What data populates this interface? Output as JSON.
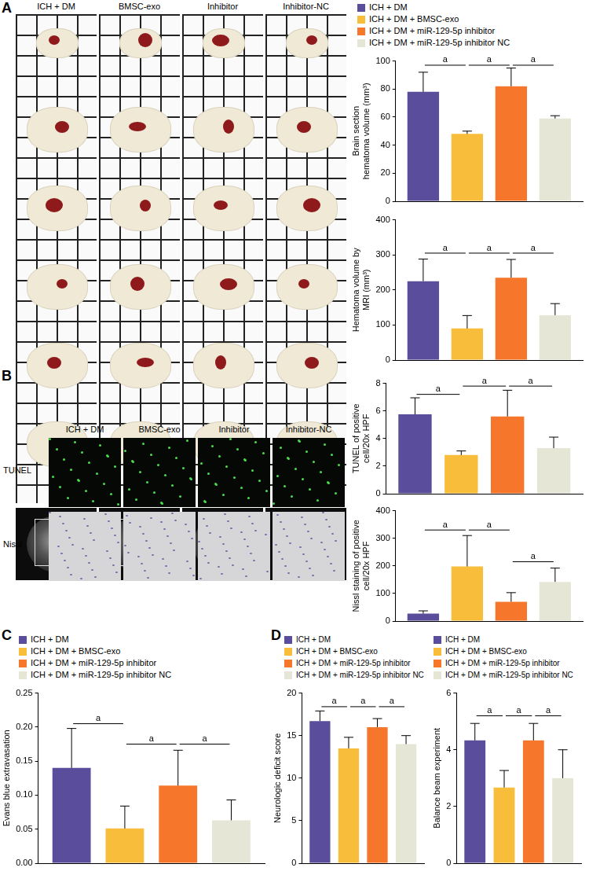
{
  "panel_labels": [
    "A",
    "B",
    "C",
    "D"
  ],
  "images": {
    "A": {
      "columns": [
        "ICH + DM",
        "BMSC-exo",
        "Inhibitor",
        "Inhibitor-NC"
      ]
    },
    "B": {
      "columns": [
        "ICH + DM",
        "BMSC-exo",
        "Inhibitor",
        "Inhibitor-NC"
      ],
      "rows": [
        "TUNEL",
        "Nissl"
      ]
    }
  },
  "chart_data": [
    {
      "type": "bar",
      "legend": "top",
      "y_label": [
        "Brain section",
        "hematoma volume (mm³)"
      ],
      "categories": [
        null
      ],
      "ylim": [
        0,
        100
      ],
      "yticks": [
        0,
        20,
        40,
        60,
        80,
        100
      ],
      "grid": false,
      "tick_labels": "y",
      "series": [
        {
          "name": "ICH + DM",
          "color": "#5a4e9c",
          "values": [
            78
          ],
          "error": [
            14
          ]
        },
        {
          "name": "ICH + DM + BMSC-exo",
          "color": "#f8bd3a",
          "values": [
            48
          ],
          "error": [
            2
          ]
        },
        {
          "name": "ICH + DM + miR-129-5p inhibitor",
          "color": "#f6772b",
          "values": [
            82
          ],
          "error": [
            13
          ]
        },
        {
          "name": "ICH + DM + miR-129-5p inhibitor NC",
          "color": "#e6e6d6",
          "values": [
            59
          ],
          "error": [
            2
          ]
        }
      ],
      "significance": [
        {
          "from": 0,
          "to": 1,
          "y": 97,
          "label": "a"
        },
        {
          "from": 1,
          "to": 2,
          "y": 97,
          "label": "a"
        },
        {
          "from": 2,
          "to": 3,
          "y": 97,
          "label": "a"
        }
      ]
    },
    {
      "type": "bar",
      "y_label": [
        "Hematoma volume by",
        "MRI (mm³)"
      ],
      "categories": [
        null
      ],
      "ylim": [
        0,
        400
      ],
      "yticks": [
        0,
        100,
        200,
        300,
        400
      ],
      "grid": false,
      "tick_labels": "y",
      "series": [
        {
          "name": "ICH + DM",
          "color": "#5a4e9c",
          "values": [
            225
          ],
          "error": [
            63
          ]
        },
        {
          "name": "ICH + DM + BMSC-exo",
          "color": "#f8bd3a",
          "values": [
            90
          ],
          "error": [
            37
          ]
        },
        {
          "name": "ICH + DM + miR-129-5p inhibitor",
          "color": "#f6772b",
          "values": [
            235
          ],
          "error": [
            52
          ]
        },
        {
          "name": "ICH + DM + miR-129-5p inhibitor NC",
          "color": "#e6e6d6",
          "values": [
            128
          ],
          "error": [
            33
          ]
        }
      ],
      "significance": [
        {
          "from": 0,
          "to": 1,
          "y": 305,
          "label": "a"
        },
        {
          "from": 1,
          "to": 2,
          "y": 305,
          "label": "a"
        },
        {
          "from": 2,
          "to": 3,
          "y": 305,
          "label": "a"
        }
      ]
    },
    {
      "type": "bar",
      "y_label": [
        "TUNEL of positive",
        "cell/20x HPF"
      ],
      "categories": [
        null
      ],
      "ylim": [
        0,
        8
      ],
      "yticks": [
        0,
        2,
        4,
        6,
        8
      ],
      "grid": false,
      "tick_labels": "y",
      "series": [
        {
          "name": "ICH + DM",
          "color": "#5a4e9c",
          "values": [
            5.75
          ],
          "error": [
            1.2
          ]
        },
        {
          "name": "ICH + DM + BMSC-exo",
          "color": "#f8bd3a",
          "values": [
            2.8
          ],
          "error": [
            0.3
          ]
        },
        {
          "name": "ICH + DM + miR-129-5p inhibitor",
          "color": "#f6772b",
          "values": [
            5.6
          ],
          "error": [
            1.9
          ]
        },
        {
          "name": "ICH + DM + miR-129-5p inhibitor NC",
          "color": "#e6e6d6",
          "values": [
            3.3
          ],
          "error": [
            0.8
          ]
        }
      ],
      "significance": [
        {
          "from": 0,
          "to": 1,
          "y": 7.2,
          "label": "a"
        },
        {
          "from": 1,
          "to": 2,
          "y": 7.8,
          "label": "a"
        },
        {
          "from": 2,
          "to": 3,
          "y": 7.8,
          "label": "a"
        }
      ]
    },
    {
      "type": "bar",
      "y_label": [
        "Nissl staining of positive",
        "cell/20x HPF"
      ],
      "categories": [
        null
      ],
      "ylim": [
        0,
        400
      ],
      "yticks": [
        0,
        100,
        200,
        300,
        400
      ],
      "grid": false,
      "tick_labels": "y",
      "series": [
        {
          "name": "ICH + DM",
          "color": "#5a4e9c",
          "values": [
            27
          ],
          "error": [
            10
          ]
        },
        {
          "name": "ICH + DM + BMSC-exo",
          "color": "#f8bd3a",
          "values": [
            198
          ],
          "error": [
            112
          ]
        },
        {
          "name": "ICH + DM + miR-129-5p inhibitor",
          "color": "#f6772b",
          "values": [
            70
          ],
          "error": [
            33
          ]
        },
        {
          "name": "ICH + DM + miR-129-5p inhibitor NC",
          "color": "#e6e6d6",
          "values": [
            142
          ],
          "error": [
            50
          ]
        }
      ],
      "significance": [
        {
          "from": 0,
          "to": 1,
          "y": 330,
          "label": "a"
        },
        {
          "from": 1,
          "to": 2,
          "y": 330,
          "label": "a"
        },
        {
          "from": 2,
          "to": 3,
          "y": 215,
          "label": "a"
        }
      ]
    },
    {
      "type": "bar",
      "legend": "top",
      "y_label": "Evans blue extravasation",
      "categories": [
        null
      ],
      "ylim": [
        0,
        0.25
      ],
      "yticks": [
        {
          "value": 0,
          "label": "0.00"
        },
        {
          "value": 0.05,
          "label": "0.05"
        },
        {
          "value": 0.1,
          "label": "0.10"
        },
        {
          "value": 0.15,
          "label": "0.15"
        },
        {
          "value": 0.2,
          "label": "0.20"
        },
        {
          "value": 0.25,
          "label": "0.25"
        }
      ],
      "grid": false,
      "tick_labels": "y",
      "series": [
        {
          "name": "ICH + DM",
          "color": "#5a4e9c",
          "values": [
            0.14
          ],
          "error": [
            0.058
          ]
        },
        {
          "name": "ICH + DM + BMSC-exo",
          "color": "#f8bd3a",
          "values": [
            0.051
          ],
          "error": [
            0.033
          ]
        },
        {
          "name": "ICH + DM + miR-129-5p inhibitor",
          "color": "#f6772b",
          "values": [
            0.114
          ],
          "error": [
            0.052
          ]
        },
        {
          "name": "ICH + DM + miR-129-5p inhibitor NC",
          "color": "#e6e6d6",
          "values": [
            0.063
          ],
          "error": [
            0.03
          ]
        }
      ],
      "significance": [
        {
          "from": 0,
          "to": 1,
          "y": 0.205,
          "label": "a"
        },
        {
          "from": 1,
          "to": 2,
          "y": 0.175,
          "label": "a"
        },
        {
          "from": 2,
          "to": 3,
          "y": 0.175,
          "label": "a"
        }
      ]
    },
    {
      "type": "bar",
      "legend": "top",
      "y_label": "Neurologic deficit score",
      "categories": [
        null
      ],
      "ylim": [
        0,
        20
      ],
      "yticks": [
        0,
        5,
        10,
        15,
        20
      ],
      "grid": false,
      "tick_labels": "y",
      "series": [
        {
          "name": "ICH + DM",
          "color": "#5a4e9c",
          "values": [
            16.7
          ],
          "error": [
            1.2
          ]
        },
        {
          "name": "ICH + DM + BMSC-exo",
          "color": "#f8bd3a",
          "values": [
            13.5
          ],
          "error": [
            1.3
          ]
        },
        {
          "name": "ICH + DM + miR-129-5p inhibitor",
          "color": "#f6772b",
          "values": [
            16.0
          ],
          "error": [
            1.0
          ]
        },
        {
          "name": "ICH + DM + miR-129-5p inhibitor NC",
          "color": "#e6e6d6",
          "values": [
            14.0
          ],
          "error": [
            1.0
          ]
        }
      ],
      "significance": [
        {
          "from": 0,
          "to": 1,
          "y": 18.4,
          "label": "a"
        },
        {
          "from": 1,
          "to": 2,
          "y": 18.4,
          "label": "a"
        },
        {
          "from": 2,
          "to": 3,
          "y": 18.4,
          "label": "a"
        }
      ]
    },
    {
      "type": "bar",
      "legend": "top",
      "y_label": "Balance beam experiment",
      "categories": [
        null
      ],
      "ylim": [
        0,
        6
      ],
      "yticks": [
        0,
        2,
        4,
        6
      ],
      "grid": false,
      "tick_labels": "y",
      "series": [
        {
          "name": "ICH + DM",
          "color": "#5a4e9c",
          "values": [
            4.33
          ],
          "error": [
            0.6
          ]
        },
        {
          "name": "ICH + DM + BMSC-exo",
          "color": "#f8bd3a",
          "values": [
            2.67
          ],
          "error": [
            0.6
          ]
        },
        {
          "name": "ICH + DM + miR-129-5p inhibitor",
          "color": "#f6772b",
          "values": [
            4.33
          ],
          "error": [
            0.6
          ]
        },
        {
          "name": "ICH + DM + miR-129-5p inhibitor NC",
          "color": "#e6e6d6",
          "values": [
            3.0
          ],
          "error": [
            1.0
          ]
        }
      ],
      "significance": [
        {
          "from": 0,
          "to": 1,
          "y": 5.2,
          "label": "a"
        },
        {
          "from": 1,
          "to": 2,
          "y": 5.2,
          "label": "a"
        },
        {
          "from": 2,
          "to": 3,
          "y": 5.2,
          "label": "a"
        }
      ]
    }
  ]
}
